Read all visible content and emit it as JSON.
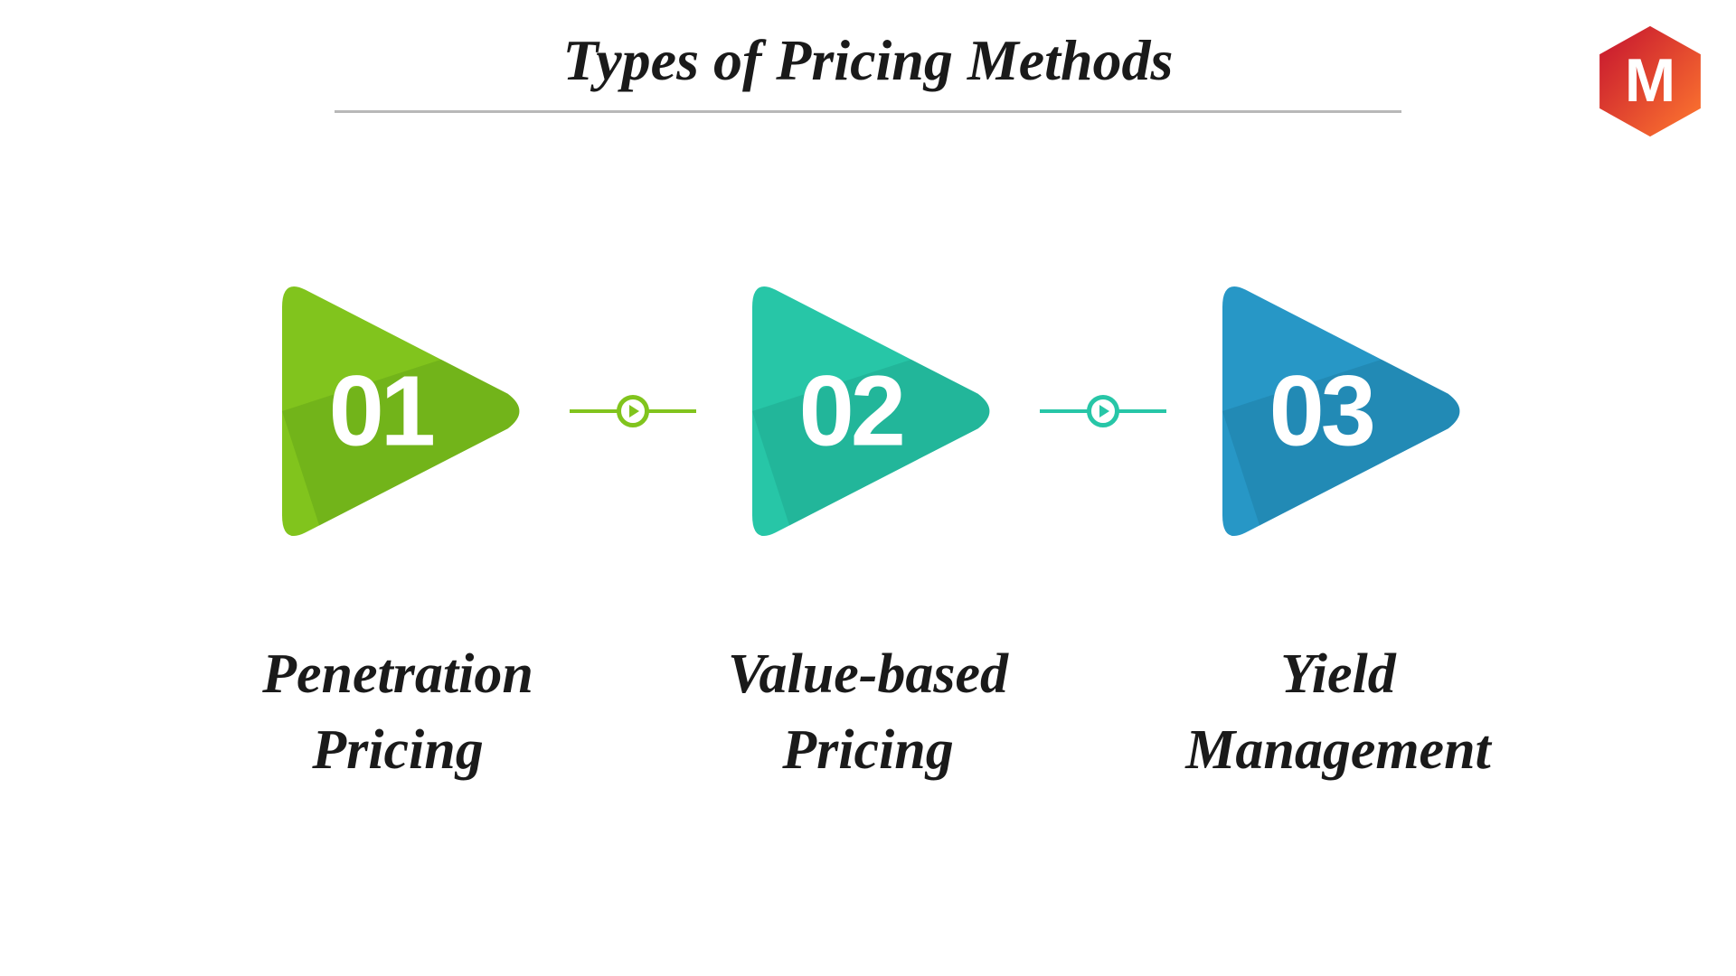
{
  "title": {
    "text": "Types of Pricing Methods",
    "fontsize": 64,
    "color": "#1a1a1a",
    "underline_color": "#b8b8b8",
    "underline_width": 1180
  },
  "logo": {
    "letter": "M",
    "gradient_from": "#c4122f",
    "gradient_to": "#ff7a2f",
    "text_color": "#ffffff",
    "size": 130
  },
  "layout": {
    "aspect_ratio": "16:9",
    "background_color": "#ffffff",
    "triangle_size": 320,
    "number_fontsize": 110,
    "number_color": "#ffffff",
    "label_fontsize": 62,
    "label_color": "#1a1a1a",
    "connector_width": 140,
    "connector_circle_diameter": 36
  },
  "steps": [
    {
      "number": "01",
      "label": "Penetration\nPricing",
      "color_main": "#81c41d",
      "color_shadow": "#66a818"
    },
    {
      "number": "02",
      "label": "Value-based\nPricing",
      "color_main": "#27c6a7",
      "color_shadow": "#1faa90"
    },
    {
      "number": "03",
      "label": "Yield\nManagement",
      "color_main": "#2797c6",
      "color_shadow": "#1f7fa8"
    }
  ],
  "connectors": [
    {
      "color": "#81c41d"
    },
    {
      "color": "#27c6a7"
    }
  ]
}
